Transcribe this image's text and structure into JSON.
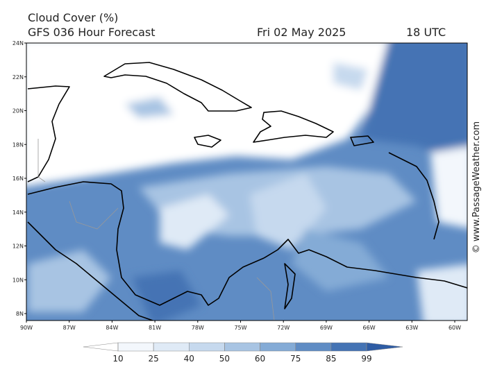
{
  "header": {
    "title": "Cloud Cover (%)",
    "model": "GFS 036 Hour Forecast",
    "date": "Fri 02 May 2025",
    "time": "18 UTC"
  },
  "map": {
    "lat_labels": [
      "24N",
      "22N",
      "20N",
      "18N",
      "16N",
      "14N",
      "12N",
      "10N",
      "8N"
    ],
    "lon_labels": [
      "90W",
      "87W",
      "84W",
      "81W",
      "78W",
      "75W",
      "72W",
      "69W",
      "66W",
      "63W",
      "60W"
    ]
  },
  "colorbar": {
    "ticks": [
      10,
      25,
      40,
      50,
      60,
      75,
      85,
      99
    ],
    "colors": [
      "#ffffff",
      "#f3f7fc",
      "#dfeaf6",
      "#c6d9ee",
      "#a8c4e3",
      "#84abd6",
      "#5f8cc4",
      "#4473b4",
      "#2e5ca4"
    ]
  },
  "watermark": "© www.PassageWeather.com"
}
